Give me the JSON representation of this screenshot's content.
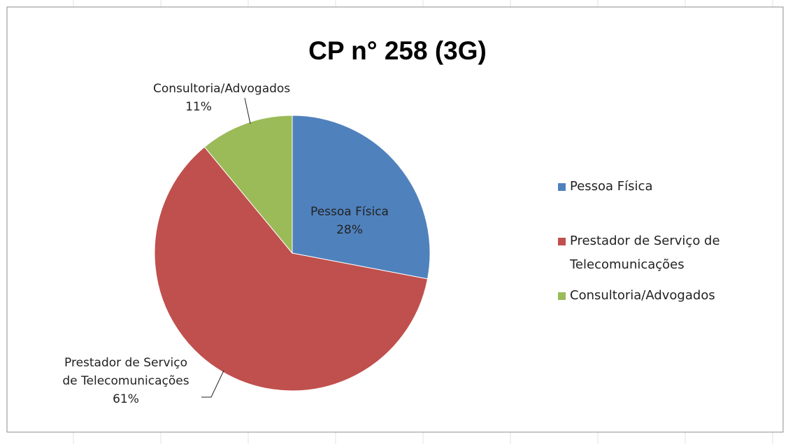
{
  "chart_data": {
    "type": "pie",
    "title": "CP n° 258 (3G)",
    "categories": [
      "Pessoa Física",
      "Prestador de Serviço de Telecomunicações",
      "Consultoria/Advogados"
    ],
    "values": [
      28,
      61,
      11
    ],
    "value_labels": [
      "28%",
      "61%",
      "11%"
    ],
    "colors": [
      "#4f81bd",
      "#c0504d",
      "#9bbb59"
    ],
    "legend": "right"
  }
}
